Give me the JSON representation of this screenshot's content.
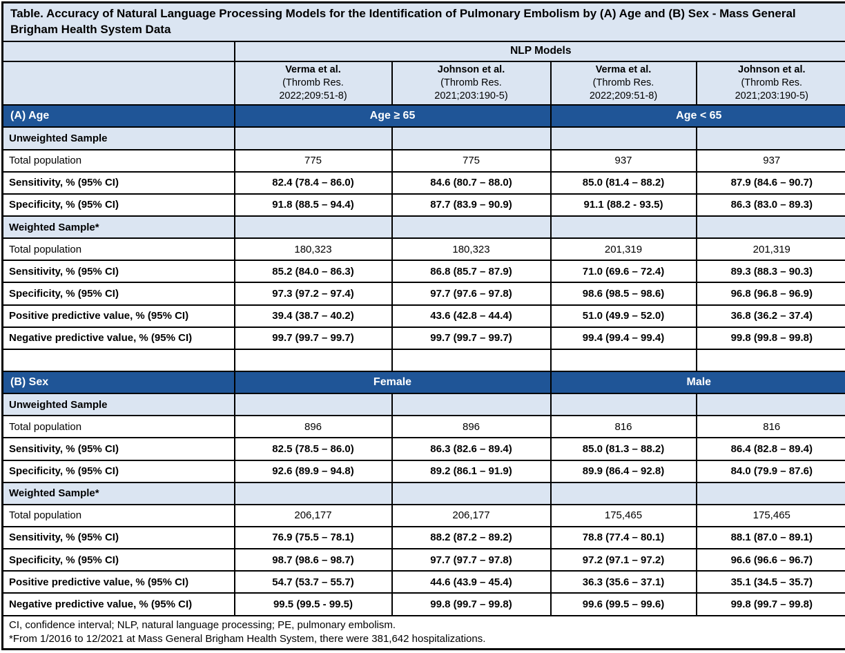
{
  "title": "Table. Accuracy of Natural Language Processing Models for the Identification of Pulmonary Embolism by (A) Age and (B) Sex - Mass General Brigham Health System Data",
  "colors": {
    "section_header_blue": "#1F5597",
    "light_blue_row": "#DBE5F2",
    "border": "#000000",
    "header_text": "#FFFFFF"
  },
  "header": {
    "nlp_models_label": "NLP Models",
    "columns": [
      {
        "name": "Verma et al.",
        "citation_line1": "(Thromb Res.",
        "citation_line2": "2022;209:51-8)"
      },
      {
        "name": "Johnson et al.",
        "citation_line1": "(Thromb Res.",
        "citation_line2": "2021;203:190-5)"
      },
      {
        "name": "Verma et al.",
        "citation_line1": "(Thromb Res.",
        "citation_line2": "2022;209:51-8)"
      },
      {
        "name": "Johnson et al.",
        "citation_line1": "(Thromb Res.",
        "citation_line2": "2021;203:190-5)"
      }
    ]
  },
  "sections": [
    {
      "id": "A",
      "label": "(A) Age",
      "group_headers": [
        "Age ≥ 65",
        "Age < 65"
      ],
      "rows": [
        {
          "type": "subheader",
          "label": "Unweighted Sample"
        },
        {
          "type": "data",
          "bold": false,
          "label": "Total population",
          "values": [
            "775",
            "775",
            "937",
            "937"
          ]
        },
        {
          "type": "data",
          "bold": true,
          "label": "Sensitivity, % (95% CI)",
          "values": [
            "82.4 (78.4 – 86.0)",
            "84.6 (80.7 – 88.0)",
            "85.0 (81.4 – 88.2)",
            "87.9 (84.6 – 90.7)"
          ]
        },
        {
          "type": "data",
          "bold": true,
          "label": "Specificity, % (95% CI)",
          "values": [
            "91.8 (88.5 – 94.4)",
            "87.7 (83.9 – 90.9)",
            "91.1 (88.2 - 93.5)",
            "86.3 (83.0 – 89.3)"
          ]
        },
        {
          "type": "subheader",
          "label": "Weighted Sample*"
        },
        {
          "type": "data",
          "bold": false,
          "label": "Total population",
          "values": [
            "180,323",
            "180,323",
            "201,319",
            "201,319"
          ]
        },
        {
          "type": "data",
          "bold": true,
          "label": "Sensitivity, % (95% CI)",
          "values": [
            "85.2 (84.0 – 86.3)",
            "86.8 (85.7 – 87.9)",
            "71.0 (69.6 – 72.4)",
            "89.3 (88.3 – 90.3)"
          ]
        },
        {
          "type": "data",
          "bold": true,
          "label": "Specificity, % (95% CI)",
          "values": [
            "97.3 (97.2 – 97.4)",
            "97.7 (97.6 – 97.8)",
            "98.6 (98.5 – 98.6)",
            "96.8 (96.8 – 96.9)"
          ]
        },
        {
          "type": "data",
          "bold": true,
          "label": "Positive predictive value, % (95% CI)",
          "values": [
            "39.4 (38.7 – 40.2)",
            "43.6 (42.8 – 44.4)",
            "51.0 (49.9 – 52.0)",
            "36.8 (36.2 – 37.4)"
          ]
        },
        {
          "type": "data",
          "bold": true,
          "label": "Negative predictive value, % (95% CI)",
          "values": [
            "99.7 (99.7 – 99.7)",
            "99.7 (99.7 – 99.7)",
            "99.4 (99.4 – 99.4)",
            "99.8 (99.8 – 99.8)"
          ]
        }
      ]
    },
    {
      "id": "B",
      "label": "(B) Sex",
      "group_headers": [
        "Female",
        "Male"
      ],
      "rows": [
        {
          "type": "subheader",
          "label": "Unweighted Sample"
        },
        {
          "type": "data",
          "bold": false,
          "label": "Total population",
          "values": [
            "896",
            "896",
            "816",
            "816"
          ]
        },
        {
          "type": "data",
          "bold": true,
          "label": "Sensitivity, % (95% CI)",
          "values": [
            "82.5 (78.5 – 86.0)",
            "86.3 (82.6 – 89.4)",
            "85.0 (81.3 – 88.2)",
            "86.4 (82.8 – 89.4)"
          ]
        },
        {
          "type": "data",
          "bold": true,
          "label": "Specificity, % (95% CI)",
          "values": [
            "92.6 (89.9 – 94.8)",
            "89.2 (86.1 – 91.9)",
            "89.9 (86.4 – 92.8)",
            "84.0 (79.9 – 87.6)"
          ]
        },
        {
          "type": "subheader",
          "label": "Weighted Sample*"
        },
        {
          "type": "data",
          "bold": false,
          "label": "Total population",
          "values": [
            "206,177",
            "206,177",
            "175,465",
            "175,465"
          ]
        },
        {
          "type": "data",
          "bold": true,
          "label": "Sensitivity, % (95% CI)",
          "values": [
            "76.9 (75.5 – 78.1)",
            "88.2 (87.2 – 89.2)",
            "78.8 (77.4 – 80.1)",
            "88.1 (87.0 – 89.1)"
          ]
        },
        {
          "type": "data",
          "bold": true,
          "label": "Specificity, % (95% CI)",
          "values": [
            "98.7 (98.6 – 98.7)",
            "97.7 (97.7 – 97.8)",
            "97.2 (97.1 – 97.2)",
            "96.6 (96.6 – 96.7)"
          ]
        },
        {
          "type": "data",
          "bold": true,
          "label": "Positive predictive value, % (95% CI)",
          "values": [
            "54.7 (53.7 – 55.7)",
            "44.6 (43.9 – 45.4)",
            "36.3 (35.6 – 37.1)",
            "35.1 (34.5 – 35.7)"
          ]
        },
        {
          "type": "data",
          "bold": true,
          "label": "Negative predictive value, % (95% CI)",
          "values": [
            "99.5 (99.5 - 99.5)",
            "99.8 (99.7 – 99.8)",
            "99.6 (99.5 – 99.6)",
            "99.8 (99.7 – 99.8)"
          ]
        }
      ]
    }
  ],
  "footnotes": [
    "CI, confidence interval; NLP, natural language processing; PE, pulmonary embolism.",
    "*From 1/2016 to 12/2021 at Mass General Brigham Health System, there were 381,642 hospitalizations."
  ]
}
